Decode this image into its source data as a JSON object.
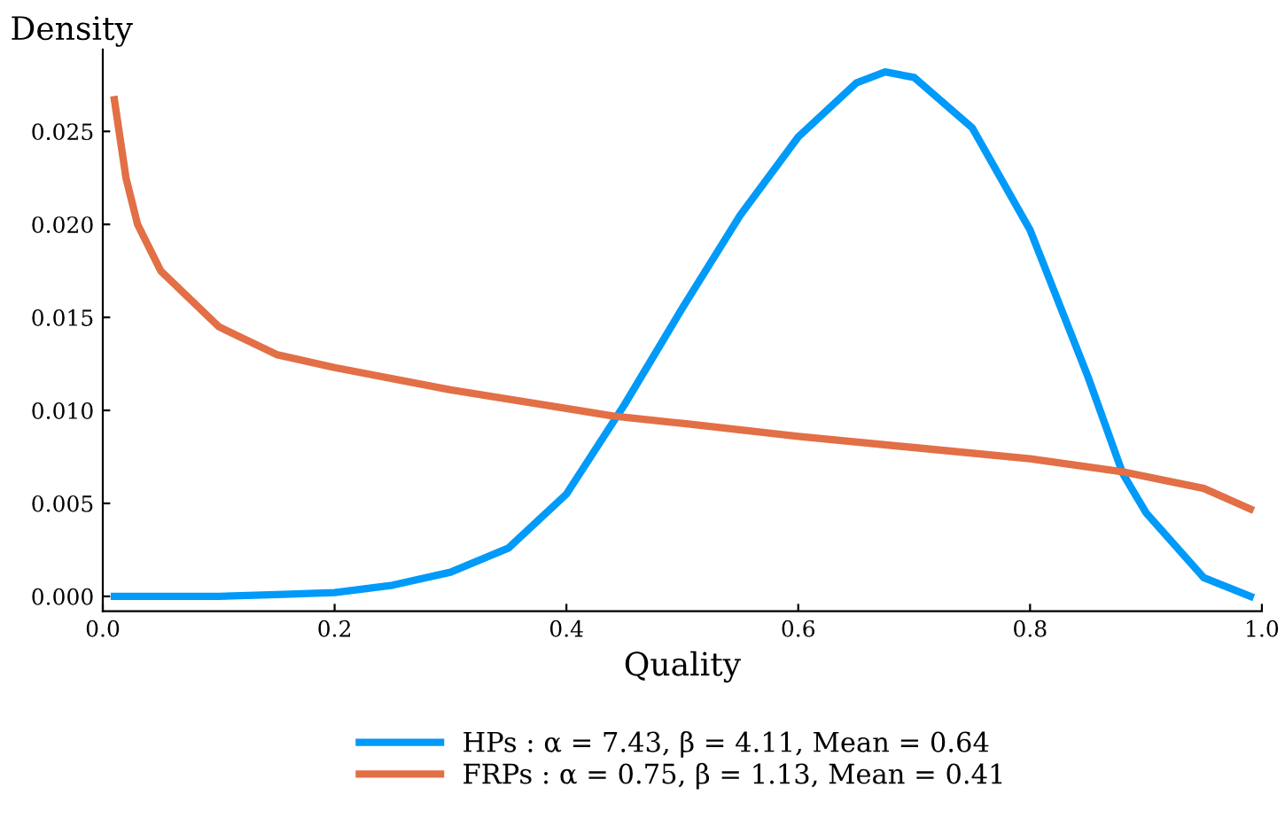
{
  "chart_data": {
    "type": "line",
    "ylabel": "Density",
    "xlabel": "Quality",
    "xlim": [
      0,
      1
    ],
    "ylim": [
      -0.0008,
      0.0294
    ],
    "xticks": [
      {
        "value": 0,
        "label": "0.0"
      },
      {
        "value": 0.2,
        "label": "0.2"
      },
      {
        "value": 0.4,
        "label": "0.4"
      },
      {
        "value": 0.6,
        "label": "0.6"
      },
      {
        "value": 0.8,
        "label": "0.8"
      },
      {
        "value": 1,
        "label": "1.0"
      }
    ],
    "yticks": [
      {
        "value": 0,
        "label": "0.000"
      },
      {
        "value": 0.005,
        "label": "0.005"
      },
      {
        "value": 0.01,
        "label": "0.010"
      },
      {
        "value": 0.015,
        "label": "0.015"
      },
      {
        "value": 0.02,
        "label": "0.020"
      },
      {
        "value": 0.025,
        "label": "0.025"
      }
    ],
    "grid": false,
    "legend": "bottom",
    "marker": "none",
    "line_style": "solid",
    "series": [
      {
        "name": "HPs : α = 7.43, β = 4.11, Mean = 0.64",
        "color": "#009af9",
        "x": [
          0.01,
          0.1,
          0.15,
          0.2,
          0.25,
          0.3,
          0.35,
          0.4,
          0.45,
          0.5,
          0.55,
          0.6,
          0.65,
          0.675,
          0.7,
          0.75,
          0.8,
          0.85,
          0.88,
          0.9,
          0.95,
          0.99
        ],
        "values": [
          0,
          0,
          0.0001,
          0.0002,
          0.0006,
          0.0013,
          0.0026,
          0.0055,
          0.0103,
          0.0155,
          0.0205,
          0.0247,
          0.0276,
          0.0282,
          0.0279,
          0.0252,
          0.0197,
          0.0118,
          0.0066,
          0.0045,
          0.001,
          0
        ]
      },
      {
        "name": "FRPs : α = 0.75, β = 1.13, Mean = 0.41",
        "color": "#e26f46",
        "x": [
          0.01,
          0.02,
          0.03,
          0.05,
          0.1,
          0.15,
          0.2,
          0.3,
          0.4,
          0.44,
          0.5,
          0.6,
          0.7,
          0.8,
          0.88,
          0.95,
          0.99
        ],
        "values": [
          0.0267,
          0.0225,
          0.02,
          0.0175,
          0.0145,
          0.013,
          0.0123,
          0.0111,
          0.0101,
          0.0097,
          0.0093,
          0.0086,
          0.008,
          0.0074,
          0.0067,
          0.0058,
          0.0047
        ]
      }
    ]
  }
}
